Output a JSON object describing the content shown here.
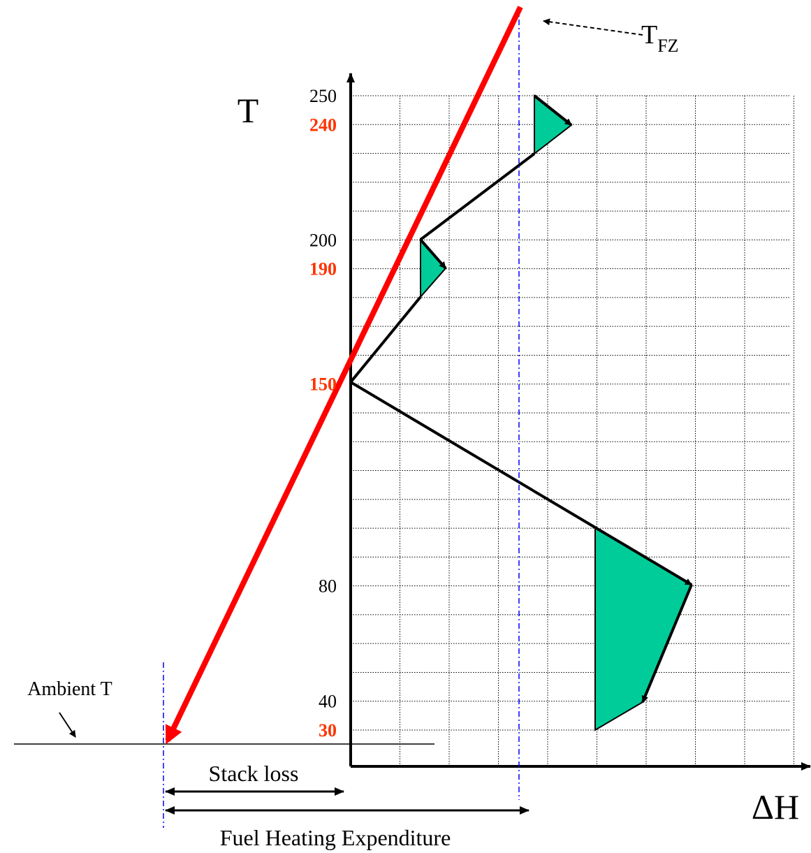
{
  "diagram": {
    "y_axis": {
      "label": "T",
      "ticks": [
        {
          "value": 250,
          "color": "#000000"
        },
        {
          "value": 240,
          "color": "#ff3300"
        },
        {
          "value": 200,
          "color": "#000000"
        },
        {
          "value": 190,
          "color": "#ff3300"
        },
        {
          "value": 150,
          "color": "#ff3300"
        },
        {
          "value": 80,
          "color": "#000000"
        },
        {
          "value": 40,
          "color": "#000000"
        },
        {
          "value": 30,
          "color": "#ff3300"
        }
      ]
    },
    "x_axis": {
      "label": "ΔH"
    },
    "line_label": {
      "main": "T",
      "sub": "FZ"
    },
    "ambient_label": "Ambient T",
    "stack_loss_label": "Stack loss",
    "fuel_label": "Fuel Heating Expenditure"
  }
}
